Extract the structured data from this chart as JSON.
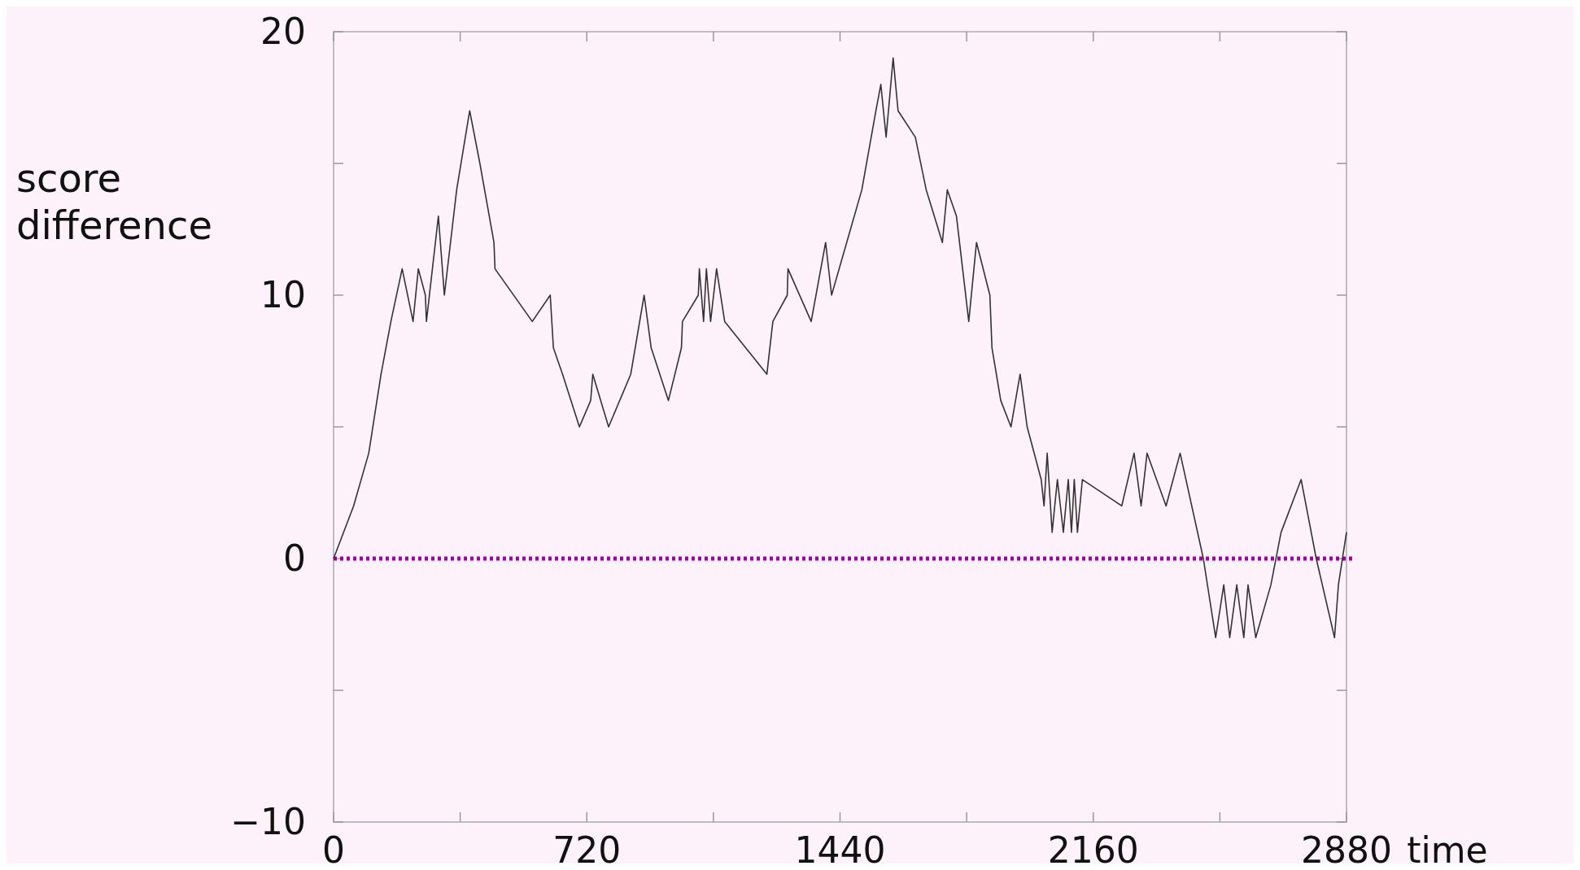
{
  "chart_data": {
    "type": "line",
    "xlabel": "time",
    "ylabel": "score difference",
    "x": [
      0,
      57,
      100,
      135,
      163,
      195,
      226,
      241,
      261,
      264,
      298,
      315,
      350,
      387,
      416,
      456,
      459,
      565,
      616,
      625,
      651,
      699,
      731,
      737,
      782,
      845,
      883,
      903,
      952,
      989,
      992,
      1037,
      1040,
      1052,
      1060,
      1072,
      1089,
      1112,
      1232,
      1249,
      1290,
      1292,
      1358,
      1399,
      1416,
      1502,
      1542,
      1556,
      1571,
      1591,
      1605,
      1654,
      1685,
      1731,
      1745,
      1771,
      1806,
      1828,
      1866,
      1872,
      1897,
      1926,
      1952,
      1972,
      2012,
      2020,
      2029,
      2043,
      2058,
      2075,
      2089,
      2098,
      2106,
      2115,
      2129,
      2241,
      2276,
      2296,
      2313,
      2367,
      2407,
      2473,
      2508,
      2531,
      2548,
      2568,
      2588,
      2600,
      2622,
      2665,
      2694,
      2751,
      2794,
      2846,
      2857,
      2880
    ],
    "series": [
      {
        "color": "#333333",
        "values": [
          0,
          2,
          4,
          7,
          9,
          11,
          9,
          11,
          10,
          9,
          13,
          10,
          14,
          17,
          15,
          12,
          11,
          9,
          10,
          8,
          7,
          5,
          6,
          7,
          5,
          7,
          10,
          8,
          6,
          8,
          9,
          10,
          11,
          9,
          11,
          9,
          11,
          9,
          7,
          9,
          10,
          11,
          9,
          12,
          10,
          14,
          17,
          18,
          16,
          19,
          17,
          16,
          14,
          12,
          14,
          13,
          9,
          12,
          10,
          8,
          6,
          5,
          7,
          5,
          3,
          2,
          4,
          1,
          3,
          1,
          3,
          1,
          3,
          1,
          3,
          2,
          4,
          2,
          4,
          2,
          4,
          0,
          -3,
          -1,
          -3,
          -1,
          -3,
          -1,
          -3,
          -1,
          1,
          3,
          0,
          -3,
          -1,
          1
        ]
      }
    ],
    "xlim": [
      0,
      2880
    ],
    "xticks": [
      0,
      {
        "value": 360,
        "label": null
      },
      720,
      {
        "value": 1080,
        "label": null
      },
      1440,
      {
        "value": 1800,
        "label": null
      },
      2160,
      {
        "value": 2520,
        "label": null
      },
      2880
    ],
    "ylim": [
      -10,
      20
    ],
    "yticks": [
      {
        "value": -10,
        "label": "−10"
      },
      {
        "value": -5,
        "label": null
      },
      0,
      {
        "value": 5,
        "label": null
      },
      10,
      {
        "value": 15,
        "label": null
      },
      20
    ],
    "ref_lines": [
      {
        "axis": "y",
        "value": 0,
        "color": "#a000a0",
        "line_style": "dotted"
      }
    ],
    "grid": false,
    "marker": "none",
    "line_style": "solid"
  }
}
